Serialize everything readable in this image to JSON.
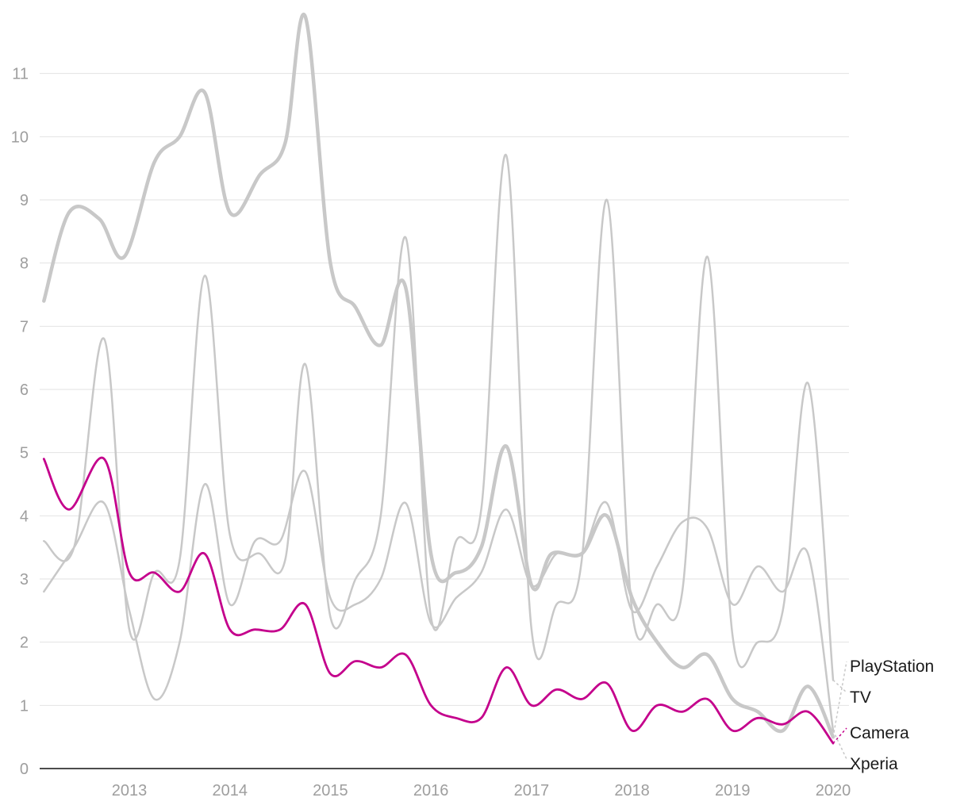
{
  "chart_data": {
    "type": "line",
    "title": "",
    "xlabel": "",
    "ylabel": "",
    "xlim": [
      2012.15,
      2020.1
    ],
    "ylim": [
      0,
      12
    ],
    "yticks": [
      0,
      1,
      2,
      3,
      4,
      5,
      6,
      7,
      8,
      9,
      10,
      11
    ],
    "xticks": [
      2013,
      2014,
      2015,
      2016,
      2017,
      2018,
      2019,
      2020
    ],
    "grid": true,
    "highlight_color": "#c4008c",
    "muted_color": "#c8c8c8",
    "series": [
      {
        "name": "PlayStation",
        "color": "#c8c8c8",
        "emphasis": "bold",
        "x": [
          2012.15,
          2012.4,
          2012.7,
          2012.95,
          2013.25,
          2013.5,
          2013.75,
          2014.0,
          2014.3,
          2014.55,
          2014.75,
          2015.0,
          2015.25,
          2015.5,
          2015.75,
          2016.0,
          2016.25,
          2016.5,
          2016.75,
          2017.0,
          2017.2,
          2017.5,
          2017.75,
          2018.0,
          2018.25,
          2018.5,
          2018.75,
          2019.0,
          2019.25,
          2019.5,
          2019.75,
          2020.0
        ],
        "y": [
          7.4,
          8.8,
          8.7,
          8.1,
          9.6,
          10.0,
          10.7,
          8.8,
          9.4,
          9.9,
          11.9,
          8.0,
          7.3,
          6.7,
          7.6,
          3.4,
          3.1,
          3.5,
          5.1,
          2.9,
          3.4,
          3.4,
          4.0,
          2.7,
          2.0,
          1.6,
          1.8,
          1.1,
          0.9,
          0.6,
          1.3,
          0.5
        ]
      },
      {
        "name": "TV",
        "color": "#c8c8c8",
        "emphasis": "normal",
        "x": [
          2012.15,
          2012.45,
          2012.75,
          2013.0,
          2013.25,
          2013.5,
          2013.75,
          2014.0,
          2014.3,
          2014.55,
          2014.75,
          2015.0,
          2015.25,
          2015.5,
          2015.75,
          2016.0,
          2016.25,
          2016.5,
          2016.75,
          2017.0,
          2017.25,
          2017.5,
          2017.75,
          2018.0,
          2018.25,
          2018.5,
          2018.75,
          2019.0,
          2019.25,
          2019.5,
          2019.75,
          2020.0
        ],
        "y": [
          3.6,
          3.5,
          6.8,
          2.2,
          3.1,
          3.3,
          7.8,
          3.7,
          3.4,
          3.3,
          6.4,
          2.4,
          3.0,
          4.0,
          8.4,
          2.4,
          3.6,
          4.1,
          9.7,
          2.2,
          2.6,
          3.3,
          9.0,
          2.5,
          2.6,
          2.8,
          8.1,
          2.1,
          2.0,
          2.5,
          6.1,
          1.4
        ]
      },
      {
        "name": "Camera",
        "color": "#c4008c",
        "emphasis": "highlight",
        "x": [
          2012.15,
          2012.4,
          2012.75,
          2013.0,
          2013.25,
          2013.5,
          2013.75,
          2014.0,
          2014.25,
          2014.5,
          2014.75,
          2015.0,
          2015.25,
          2015.5,
          2015.75,
          2016.0,
          2016.25,
          2016.5,
          2016.75,
          2017.0,
          2017.25,
          2017.5,
          2017.75,
          2018.0,
          2018.25,
          2018.5,
          2018.75,
          2019.0,
          2019.25,
          2019.5,
          2019.75,
          2020.0
        ],
        "y": [
          4.9,
          4.1,
          4.9,
          3.1,
          3.1,
          2.8,
          3.4,
          2.2,
          2.2,
          2.2,
          2.6,
          1.5,
          1.7,
          1.6,
          1.8,
          1.0,
          0.8,
          0.8,
          1.6,
          1.0,
          1.25,
          1.1,
          1.35,
          0.6,
          1.0,
          0.9,
          1.1,
          0.6,
          0.8,
          0.7,
          0.9,
          0.4
        ]
      },
      {
        "name": "Xperia",
        "color": "#c8c8c8",
        "emphasis": "normal",
        "x": [
          2012.15,
          2012.45,
          2012.75,
          2013.0,
          2013.25,
          2013.5,
          2013.75,
          2014.0,
          2014.25,
          2014.5,
          2014.75,
          2015.0,
          2015.25,
          2015.5,
          2015.75,
          2016.0,
          2016.25,
          2016.5,
          2016.75,
          2017.0,
          2017.25,
          2017.5,
          2017.75,
          2018.0,
          2018.25,
          2018.5,
          2018.75,
          2019.0,
          2019.25,
          2019.5,
          2019.75,
          2020.0
        ],
        "y": [
          2.8,
          3.5,
          4.2,
          2.5,
          1.1,
          2.0,
          4.5,
          2.6,
          3.6,
          3.6,
          4.7,
          2.7,
          2.6,
          3.0,
          4.2,
          2.3,
          2.7,
          3.1,
          4.1,
          2.9,
          3.4,
          3.4,
          4.2,
          2.5,
          3.2,
          3.9,
          3.8,
          2.6,
          3.2,
          2.8,
          3.4,
          0.6
        ]
      }
    ],
    "labels": [
      "PlayStation",
      "TV",
      "Camera",
      "Xperia"
    ]
  }
}
